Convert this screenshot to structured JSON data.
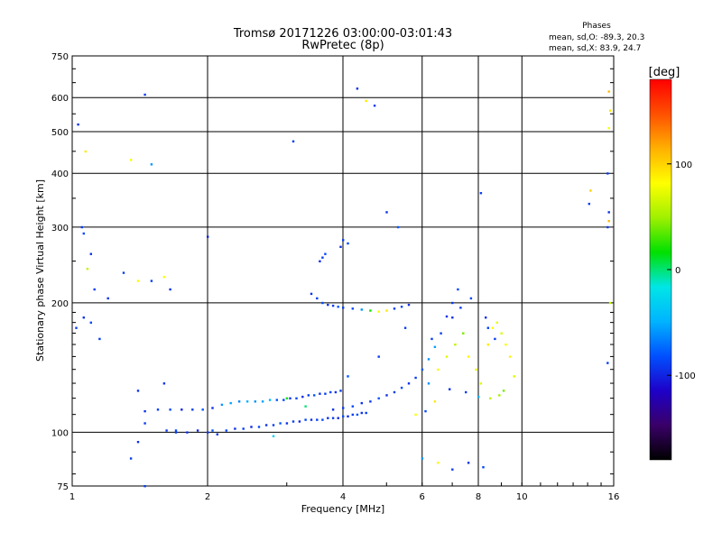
{
  "header": {
    "title_line1": "Tromsø 20171226 03:00:00-03:01:43",
    "title_line2": "RwPretec (8p)",
    "phase_title": "Phases",
    "phase_o": "mean, sd,O: -89.3, 20.3",
    "phase_x": "mean, sd,X:  83.9, 24.7"
  },
  "colors": {
    "background": "#ffffff",
    "axes": "#000000",
    "grid": "#000000",
    "colormap": [
      "#000000",
      "#3a0068",
      "#1e00c8",
      "#0050ff",
      "#00b4ff",
      "#00e6e6",
      "#00e000",
      "#a0f000",
      "#ffff00",
      "#ffb000",
      "#ff5000",
      "#ff0000"
    ]
  },
  "colorbar": {
    "unit": "[deg]",
    "min": -180,
    "max": 180,
    "tick_values": [
      100,
      0,
      -100
    ],
    "tick_labels": [
      "100",
      "0",
      "-100"
    ]
  },
  "chart_data": {
    "type": "scatter",
    "title": "Tromsø 20171226 03:00:00-03:01:43",
    "subtitle": "RwPretec (8p)",
    "xlabel": "Frequency [MHz]",
    "ylabel": "Stationary phase Virtual Height [km]",
    "x_scale": "log",
    "y_scale": "log",
    "xlim": [
      1,
      16
    ],
    "ylim": [
      75,
      750
    ],
    "x_ticks": [
      1,
      2,
      4,
      6,
      8,
      10,
      16
    ],
    "x_tick_labels": [
      "1",
      "2",
      "4",
      "6",
      "8",
      "10",
      "16"
    ],
    "y_ticks": [
      75,
      100,
      200,
      300,
      400,
      500,
      600,
      750
    ],
    "y_tick_labels": [
      "75",
      "100",
      "200",
      "300",
      "400",
      "500",
      "600",
      "750"
    ],
    "grid": true,
    "color_encoding": "phase [deg]",
    "series": [
      {
        "trace": "lower-trace",
        "points": [
          [
            1.62,
            101,
            -90
          ],
          [
            1.7,
            101,
            -85
          ],
          [
            1.8,
            100,
            -95
          ],
          [
            1.9,
            101,
            -100
          ],
          [
            2.0,
            100,
            -90
          ],
          [
            2.05,
            101,
            -80
          ],
          [
            2.1,
            99,
            -95
          ],
          [
            2.2,
            101,
            -85
          ],
          [
            2.3,
            102,
            -95
          ],
          [
            2.4,
            102,
            -90
          ],
          [
            2.5,
            103,
            -100
          ],
          [
            2.6,
            103,
            -85
          ],
          [
            2.7,
            104,
            -95
          ],
          [
            2.8,
            104,
            -90
          ],
          [
            2.9,
            105,
            -80
          ],
          [
            3.0,
            105,
            -95
          ],
          [
            3.1,
            106,
            -90
          ],
          [
            3.2,
            106,
            -100
          ],
          [
            3.3,
            107,
            -85
          ],
          [
            3.4,
            107,
            -95
          ],
          [
            3.5,
            107,
            -90
          ],
          [
            3.6,
            107,
            -85
          ],
          [
            3.7,
            108,
            -95
          ],
          [
            3.8,
            108,
            -90
          ],
          [
            3.9,
            108,
            -100
          ],
          [
            4.0,
            109,
            -85
          ],
          [
            4.1,
            109,
            -95
          ],
          [
            4.2,
            110,
            -90
          ],
          [
            4.3,
            110,
            -80
          ],
          [
            4.4,
            111,
            -95
          ],
          [
            4.5,
            111,
            -90
          ]
        ]
      },
      {
        "trace": "middle-trace",
        "points": [
          [
            1.45,
            112,
            -95
          ],
          [
            1.55,
            113,
            -90
          ],
          [
            1.65,
            113,
            -85
          ],
          [
            1.75,
            113,
            -100
          ],
          [
            1.85,
            113,
            -90
          ],
          [
            1.95,
            113,
            -80
          ],
          [
            2.05,
            114,
            -95
          ],
          [
            2.15,
            116,
            -60
          ],
          [
            2.25,
            117,
            -55
          ],
          [
            2.35,
            118,
            -65
          ],
          [
            2.45,
            118,
            -50
          ],
          [
            2.55,
            118,
            -60
          ],
          [
            2.65,
            118,
            -55
          ],
          [
            2.75,
            119,
            -45
          ],
          [
            2.85,
            119,
            -80
          ],
          [
            2.95,
            119,
            -85
          ],
          [
            3.05,
            120,
            -90
          ],
          [
            3.15,
            120,
            -85
          ],
          [
            3.25,
            121,
            -95
          ],
          [
            3.35,
            122,
            -90
          ],
          [
            3.45,
            122,
            -80
          ],
          [
            3.55,
            123,
            -95
          ],
          [
            3.65,
            123,
            -90
          ],
          [
            3.75,
            124,
            -85
          ],
          [
            3.85,
            124,
            -95
          ],
          [
            3.95,
            125,
            -90
          ]
        ]
      },
      {
        "trace": "rising-trace",
        "points": [
          [
            3.8,
            113,
            -95
          ],
          [
            4.0,
            114,
            -90
          ],
          [
            4.2,
            115,
            -85
          ],
          [
            4.4,
            117,
            -95
          ],
          [
            4.6,
            118,
            -90
          ],
          [
            4.8,
            120,
            -80
          ],
          [
            5.0,
            122,
            -95
          ],
          [
            5.2,
            124,
            -90
          ],
          [
            5.4,
            127,
            -85
          ],
          [
            5.6,
            130,
            -95
          ],
          [
            5.8,
            134,
            -90
          ],
          [
            6.0,
            140,
            -80
          ],
          [
            6.2,
            148,
            -60
          ],
          [
            6.4,
            158,
            -55
          ],
          [
            6.6,
            170,
            -90
          ],
          [
            6.8,
            186,
            -95
          ],
          [
            7.0,
            200,
            -90
          ],
          [
            7.2,
            215,
            -85
          ]
        ]
      },
      {
        "trace": "upper-trace",
        "points": [
          [
            3.4,
            210,
            -95
          ],
          [
            3.5,
            205,
            -90
          ],
          [
            3.6,
            200,
            -85
          ],
          [
            3.7,
            198,
            -95
          ],
          [
            3.8,
            197,
            -90
          ],
          [
            3.9,
            196,
            -80
          ],
          [
            4.0,
            195,
            -90
          ],
          [
            4.2,
            194,
            -85
          ],
          [
            4.4,
            193,
            -60
          ],
          [
            4.6,
            192,
            20
          ],
          [
            4.8,
            191,
            80
          ],
          [
            5.0,
            192,
            90
          ],
          [
            5.2,
            194,
            -90
          ],
          [
            5.4,
            196,
            -85
          ],
          [
            5.6,
            198,
            -95
          ],
          [
            3.55,
            250,
            -95
          ],
          [
            3.6,
            255,
            -90
          ],
          [
            3.65,
            260,
            -85
          ],
          [
            3.95,
            270,
            -95
          ],
          [
            4.0,
            280,
            -90
          ],
          [
            4.1,
            275,
            -85
          ]
        ]
      },
      {
        "trace": "high-frequency-cluster",
        "points": [
          [
            6.2,
            130,
            -60
          ],
          [
            6.5,
            140,
            80
          ],
          [
            6.8,
            150,
            70
          ],
          [
            7.1,
            160,
            60
          ],
          [
            7.4,
            170,
            40
          ],
          [
            7.6,
            150,
            85
          ],
          [
            7.9,
            140,
            75
          ],
          [
            8.1,
            130,
            70
          ],
          [
            8.4,
            160,
            90
          ],
          [
            8.6,
            175,
            80
          ],
          [
            8.8,
            180,
            75
          ],
          [
            9.0,
            170,
            70
          ],
          [
            9.2,
            160,
            80
          ],
          [
            9.4,
            150,
            85
          ],
          [
            9.6,
            135,
            70
          ],
          [
            7.0,
            185,
            -95
          ],
          [
            7.3,
            195,
            -90
          ],
          [
            7.7,
            205,
            -85
          ],
          [
            8.3,
            185,
            -95
          ],
          [
            8.7,
            165,
            -90
          ],
          [
            9.1,
            125,
            40
          ],
          [
            8.9,
            122,
            50
          ],
          [
            8.5,
            120,
            60
          ],
          [
            8.0,
            121,
            -50
          ],
          [
            7.5,
            124,
            -90
          ],
          [
            6.9,
            126,
            -95
          ],
          [
            6.4,
            118,
            90
          ],
          [
            6.1,
            112,
            -85
          ],
          [
            5.8,
            110,
            80
          ]
        ]
      },
      {
        "trace": "scattered",
        "points": [
          [
            1.03,
            520,
            -95
          ],
          [
            1.07,
            450,
            90
          ],
          [
            1.05,
            300,
            -90
          ],
          [
            1.06,
            290,
            -85
          ],
          [
            1.1,
            260,
            -95
          ],
          [
            1.08,
            240,
            60
          ],
          [
            1.02,
            175,
            -90
          ],
          [
            1.06,
            185,
            -95
          ],
          [
            1.1,
            180,
            -85
          ],
          [
            1.12,
            215,
            -90
          ],
          [
            1.15,
            165,
            -90
          ],
          [
            1.2,
            205,
            -95
          ],
          [
            1.3,
            235,
            -90
          ],
          [
            1.4,
            225,
            80
          ],
          [
            1.5,
            225,
            -90
          ],
          [
            1.6,
            230,
            80
          ],
          [
            1.65,
            215,
            -95
          ],
          [
            1.35,
            430,
            80
          ],
          [
            1.45,
            610,
            -90
          ],
          [
            1.5,
            420,
            -60
          ],
          [
            1.4,
            125,
            -95
          ],
          [
            1.45,
            105,
            -90
          ],
          [
            1.6,
            130,
            -95
          ],
          [
            1.7,
            100,
            -90
          ],
          [
            1.4,
            95,
            -95
          ],
          [
            1.35,
            87,
            -90
          ],
          [
            1.45,
            75,
            -90
          ],
          [
            2.0,
            285,
            -100
          ],
          [
            3.1,
            475,
            -90
          ],
          [
            4.3,
            630,
            -95
          ],
          [
            4.5,
            590,
            90
          ],
          [
            4.7,
            575,
            -90
          ],
          [
            5.0,
            325,
            -95
          ],
          [
            5.3,
            300,
            -80
          ],
          [
            8.1,
            360,
            -90
          ],
          [
            8.4,
            175,
            -90
          ],
          [
            6.0,
            87,
            -60
          ],
          [
            6.5,
            85,
            80
          ],
          [
            7.0,
            82,
            -90
          ],
          [
            7.6,
            85,
            -95
          ],
          [
            8.2,
            83,
            -85
          ],
          [
            14.2,
            365,
            100
          ],
          [
            14.1,
            340,
            -90
          ],
          [
            15.6,
            620,
            110
          ],
          [
            15.7,
            560,
            90
          ],
          [
            15.6,
            510,
            80
          ],
          [
            15.5,
            400,
            -90
          ],
          [
            15.6,
            325,
            -95
          ],
          [
            15.6,
            310,
            110
          ],
          [
            15.5,
            300,
            -90
          ],
          [
            15.7,
            200,
            60
          ],
          [
            15.5,
            145,
            -90
          ],
          [
            3.0,
            120,
            20
          ],
          [
            3.3,
            115,
            0
          ],
          [
            2.8,
            98,
            -30
          ],
          [
            4.1,
            135,
            -80
          ],
          [
            4.8,
            150,
            -90
          ],
          [
            5.5,
            175,
            -90
          ],
          [
            6.3,
            165,
            -90
          ]
        ]
      }
    ]
  }
}
